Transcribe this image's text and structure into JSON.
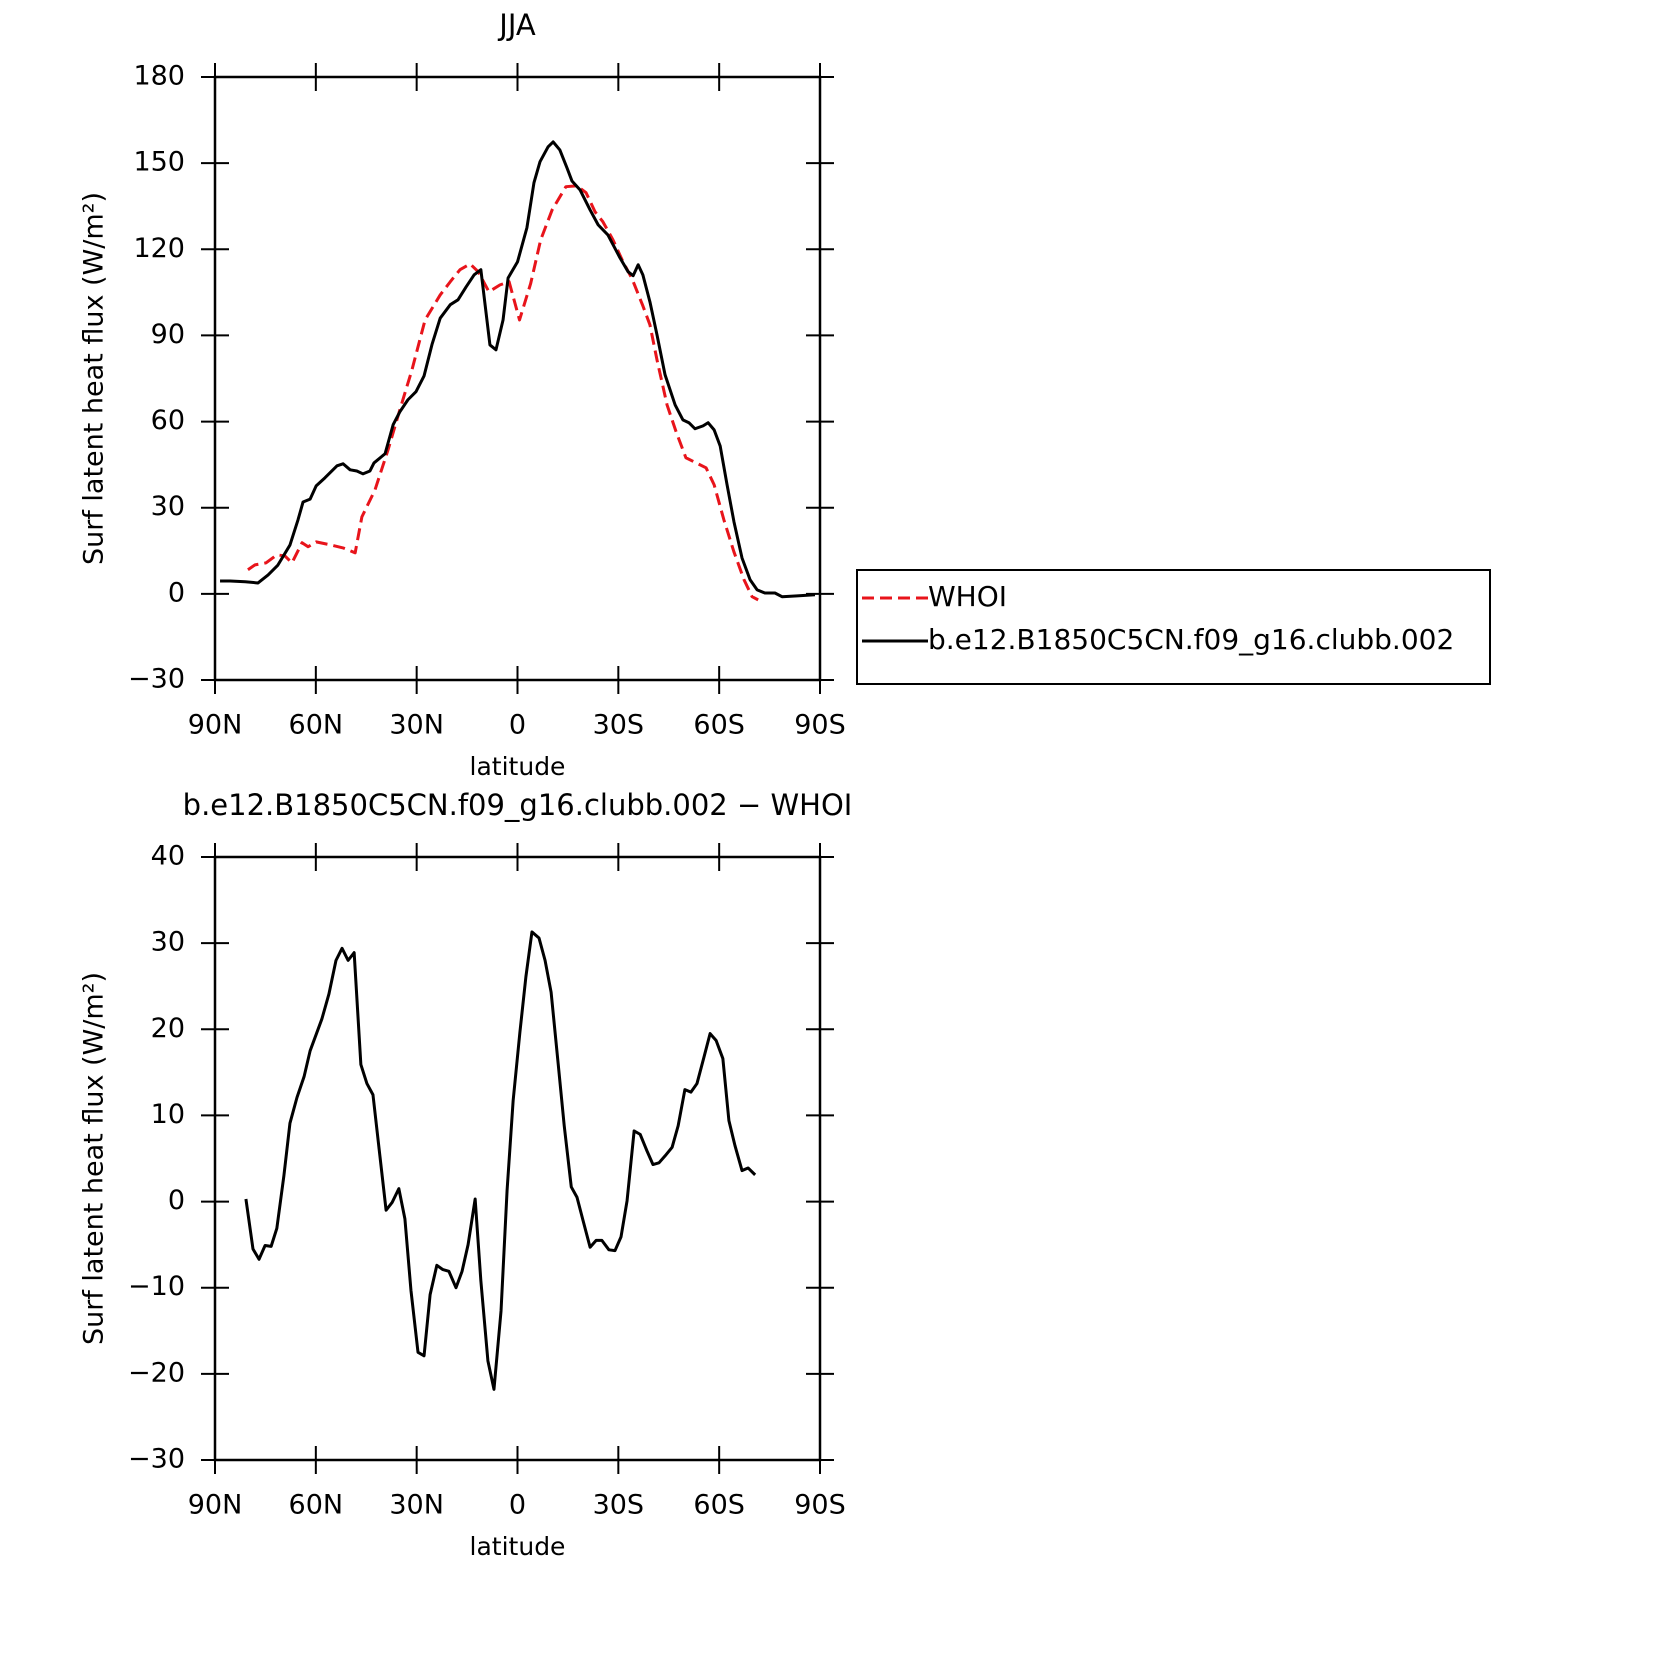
{
  "chart_data": [
    {
      "type": "line",
      "title": "JJA",
      "x_label": "latitude",
      "y_label": "Surf latent heat flux (W/m²)",
      "xlim": [
        90,
        -90
      ],
      "xticks": [
        {
          "value": 90,
          "label": "90N"
        },
        {
          "value": 60,
          "label": "60N"
        },
        {
          "value": 30,
          "label": "30N"
        },
        0,
        {
          "value": -30,
          "label": "30S"
        },
        {
          "value": -60,
          "label": "60S"
        },
        {
          "value": -90,
          "label": "90S"
        }
      ],
      "ylim": [
        -30,
        180
      ],
      "yticks": [
        {
          "value": -30,
          "label": "−30"
        },
        0,
        30,
        60,
        90,
        120,
        150,
        180
      ],
      "legend_position": "right",
      "series": [
        {
          "name": "WHOI",
          "color": "#e8141b",
          "dashed": true,
          "x": [
            80.2,
            78.1,
            74.8,
            71.6,
            69.2,
            67.1,
            64.1,
            62.3,
            59.9,
            55.8,
            51.9,
            48.3,
            46.3,
            42.4,
            38.5,
            35,
            31.4,
            27.5,
            23,
            20,
            17.1,
            14.1,
            11.7,
            8.5,
            5.2,
            2.5,
            -0.6,
            -3.9,
            -6.9,
            -10.3,
            -14.4,
            -17.7,
            -20.4,
            -23.1,
            -25.4,
            -28.4,
            -31.4,
            -34.1,
            -37.3,
            -39.4,
            -41.5,
            -44.5,
            -47.2,
            -50.1,
            -53.7,
            -56.1,
            -58.5,
            -61.4,
            -64.4,
            -67.4,
            -69.8,
            -71.6
          ],
          "values": [
            8.4,
            10.1,
            10.8,
            13.6,
            13.2,
            10.8,
            17.8,
            16.4,
            18.1,
            17.1,
            16,
            14.3,
            26.8,
            36.2,
            50.2,
            64.1,
            78,
            95.4,
            104.1,
            108.7,
            112.9,
            114.9,
            112.2,
            105.2,
            107.6,
            108.7,
            95.4,
            108,
            123.3,
            133.7,
            141.8,
            142.1,
            139.7,
            133,
            129.6,
            123.3,
            115.6,
            109.7,
            100.3,
            93.7,
            81.5,
            65.8,
            56.4,
            47.4,
            45.3,
            43.9,
            38,
            25.8,
            14.6,
            4.9,
            -1,
            -2.1
          ]
        },
        {
          "name": "b.e12.B1850C5CN.f09_g16.clubb.002",
          "color": "#000000",
          "dashed": false,
          "x": [
            88.5,
            85.5,
            81,
            77.2,
            74.2,
            71.3,
            67.7,
            65.3,
            63.8,
            61.7,
            59.9,
            57.3,
            53.7,
            51.9,
            49.8,
            47.8,
            46,
            43.9,
            42.7,
            39.4,
            37,
            35,
            32.6,
            30.2,
            27.8,
            25.4,
            23,
            20,
            17.7,
            15.3,
            12.9,
            10.9,
            8.2,
            6.4,
            4.3,
            2.8,
            0,
            -2.8,
            -4.9,
            -6.7,
            -9.1,
            -10.6,
            -12.6,
            -14.7,
            -16.2,
            -18.6,
            -21.6,
            -24,
            -26.9,
            -30.5,
            -32.9,
            -34.4,
            -35.9,
            -37.3,
            -39.4,
            -41.5,
            -43.9,
            -46.9,
            -49.2,
            -51,
            -52.8,
            -55.2,
            -56.7,
            -58.5,
            -60.3,
            -62.3,
            -64.4,
            -66.8,
            -69.2,
            -71.3,
            -73.6,
            -76.6,
            -78.7,
            -83.2,
            -88.5
          ],
          "values": [
            4.5,
            4.5,
            4.2,
            3.8,
            6.6,
            10,
            17,
            25.8,
            32,
            33,
            37.6,
            40.4,
            44.6,
            45.3,
            43.2,
            42.8,
            41.8,
            42.8,
            45.6,
            48.8,
            58.9,
            63.4,
            67.6,
            70.4,
            75.9,
            87,
            96,
            100.7,
            102.4,
            106.9,
            111.1,
            112.9,
            86.7,
            85,
            95.4,
            110,
            115.6,
            127.5,
            143.2,
            150.5,
            155.7,
            157.4,
            154.6,
            148.4,
            143.8,
            140.7,
            133.7,
            128.5,
            125,
            117,
            112.2,
            110.8,
            114.6,
            111.1,
            101.7,
            90.2,
            76.3,
            65.8,
            60.6,
            59.6,
            57.5,
            58.5,
            59.6,
            57.1,
            51.5,
            38.3,
            25.1,
            12.5,
            4.9,
            1.4,
            0.3,
            0.3,
            -1,
            -0.7,
            -0.3
          ]
        }
      ]
    },
    {
      "type": "line",
      "title": "b.e12.B1850C5CN.f09_g16.clubb.002 − WHOI",
      "x_label": "latitude",
      "y_label": "Surf latent heat flux (W/m²)",
      "xlim": [
        90,
        -90
      ],
      "xticks": [
        {
          "value": 90,
          "label": "90N"
        },
        {
          "value": 60,
          "label": "60N"
        },
        {
          "value": 30,
          "label": "30N"
        },
        0,
        {
          "value": -30,
          "label": "30S"
        },
        {
          "value": -60,
          "label": "60S"
        },
        {
          "value": -90,
          "label": "90S"
        }
      ],
      "ylim": [
        -30,
        40
      ],
      "yticks": [
        {
          "value": -30,
          "label": "−30"
        },
        {
          "value": -20,
          "label": "−20"
        },
        {
          "value": -10,
          "label": "−10"
        },
        0,
        10,
        20,
        30,
        40
      ],
      "series": [
        {
          "color": "#000000",
          "dashed": false,
          "x": [
            80.8,
            78.7,
            76.9,
            75.1,
            73.3,
            71.6,
            69.5,
            67.7,
            65.6,
            63.5,
            61.7,
            59.9,
            58.2,
            56.1,
            54,
            52.2,
            50.4,
            48.6,
            46.6,
            44.8,
            43,
            41.2,
            39.1,
            37.3,
            35.3,
            33.5,
            31.7,
            29.6,
            27.8,
            26,
            24,
            22.2,
            20.4,
            18.3,
            16.5,
            14.7,
            12.6,
            10.9,
            8.8,
            7,
            4.9,
            3.1,
            1.3,
            -0.7,
            -2.5,
            -4.3,
            -6.4,
            -8.2,
            -10,
            -12.1,
            -13.9,
            -16,
            -17.7,
            -19.5,
            -21.6,
            -23.4,
            -25.1,
            -27.2,
            -29,
            -30.8,
            -32.6,
            -34.7,
            -36.5,
            -38.5,
            -40.3,
            -42.1,
            -43.9,
            -46,
            -47.8,
            -49.8,
            -51.6,
            -53.4,
            -55.5,
            -57.3,
            -59.1,
            -61.1,
            -62.9,
            -64.7,
            -66.8,
            -68.6,
            -70.7
          ],
          "values": [
            0.3,
            -5.5,
            -6.7,
            -5.1,
            -5.2,
            -3.1,
            3,
            9.1,
            12.1,
            14.5,
            17.5,
            19.4,
            21.2,
            24.1,
            28,
            29.4,
            28,
            28.9,
            15.9,
            13.7,
            12.4,
            6.2,
            -1,
            -0.1,
            1.5,
            -2,
            -10.3,
            -17.5,
            -17.9,
            -10.8,
            -7.4,
            -7.9,
            -8.1,
            -10,
            -8.1,
            -5,
            0.3,
            -9.2,
            -18.5,
            -21.8,
            -12.7,
            1.3,
            11.7,
            19.6,
            26.1,
            31.3,
            30.6,
            28,
            24.3,
            16,
            8.8,
            1.7,
            0.5,
            -2.2,
            -5.3,
            -4.5,
            -4.5,
            -5.6,
            -5.7,
            -4.1,
            0.1,
            8.2,
            7.8,
            5.9,
            4.3,
            4.5,
            5.3,
            6.3,
            8.8,
            13,
            12.7,
            13.7,
            16.8,
            19.5,
            18.7,
            16.6,
            9.4,
            6.5,
            3.6,
            3.9,
            3.1
          ]
        }
      ]
    }
  ]
}
